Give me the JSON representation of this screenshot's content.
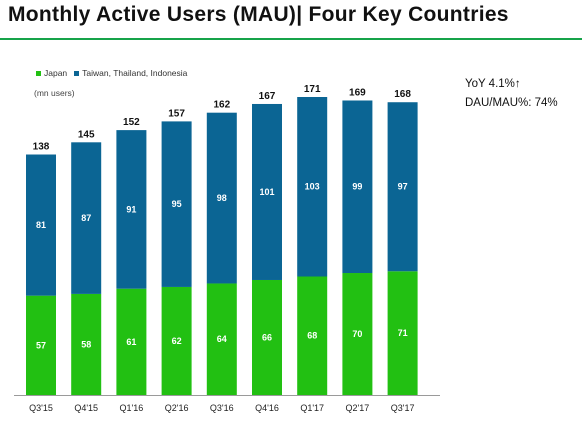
{
  "title": "Monthly Active Users  (MAU)| Four Key Countries",
  "legend": {
    "japan": "Japan",
    "others": "Taiwan, Thailand, Indonesia"
  },
  "unit_label": "(mn users)",
  "notes": {
    "yoy": "YoY 4.1%↑",
    "dau_mau": "DAU/MAU%: 74%"
  },
  "colors": {
    "japan": "#22c012",
    "others": "#0b6594",
    "title_rule": "#16a34a"
  },
  "chart_data": {
    "type": "bar",
    "stacked": true,
    "categories": [
      "Q3'15",
      "Q4'15",
      "Q1'16",
      "Q2'16",
      "Q3'16",
      "Q4'16",
      "Q1'17",
      "Q2'17",
      "Q3'17"
    ],
    "series": [
      {
        "name": "Japan",
        "values": [
          57,
          58,
          61,
          62,
          64,
          66,
          68,
          70,
          71
        ]
      },
      {
        "name": "Taiwan, Thailand, Indonesia",
        "values": [
          81,
          87,
          91,
          95,
          98,
          101,
          103,
          99,
          97
        ]
      }
    ],
    "totals": [
      138,
      145,
      152,
      157,
      162,
      167,
      171,
      169,
      168
    ],
    "ylabel": "(mn users)",
    "ylim": [
      0,
      171
    ],
    "grid": false,
    "legend_position": "top-left"
  }
}
